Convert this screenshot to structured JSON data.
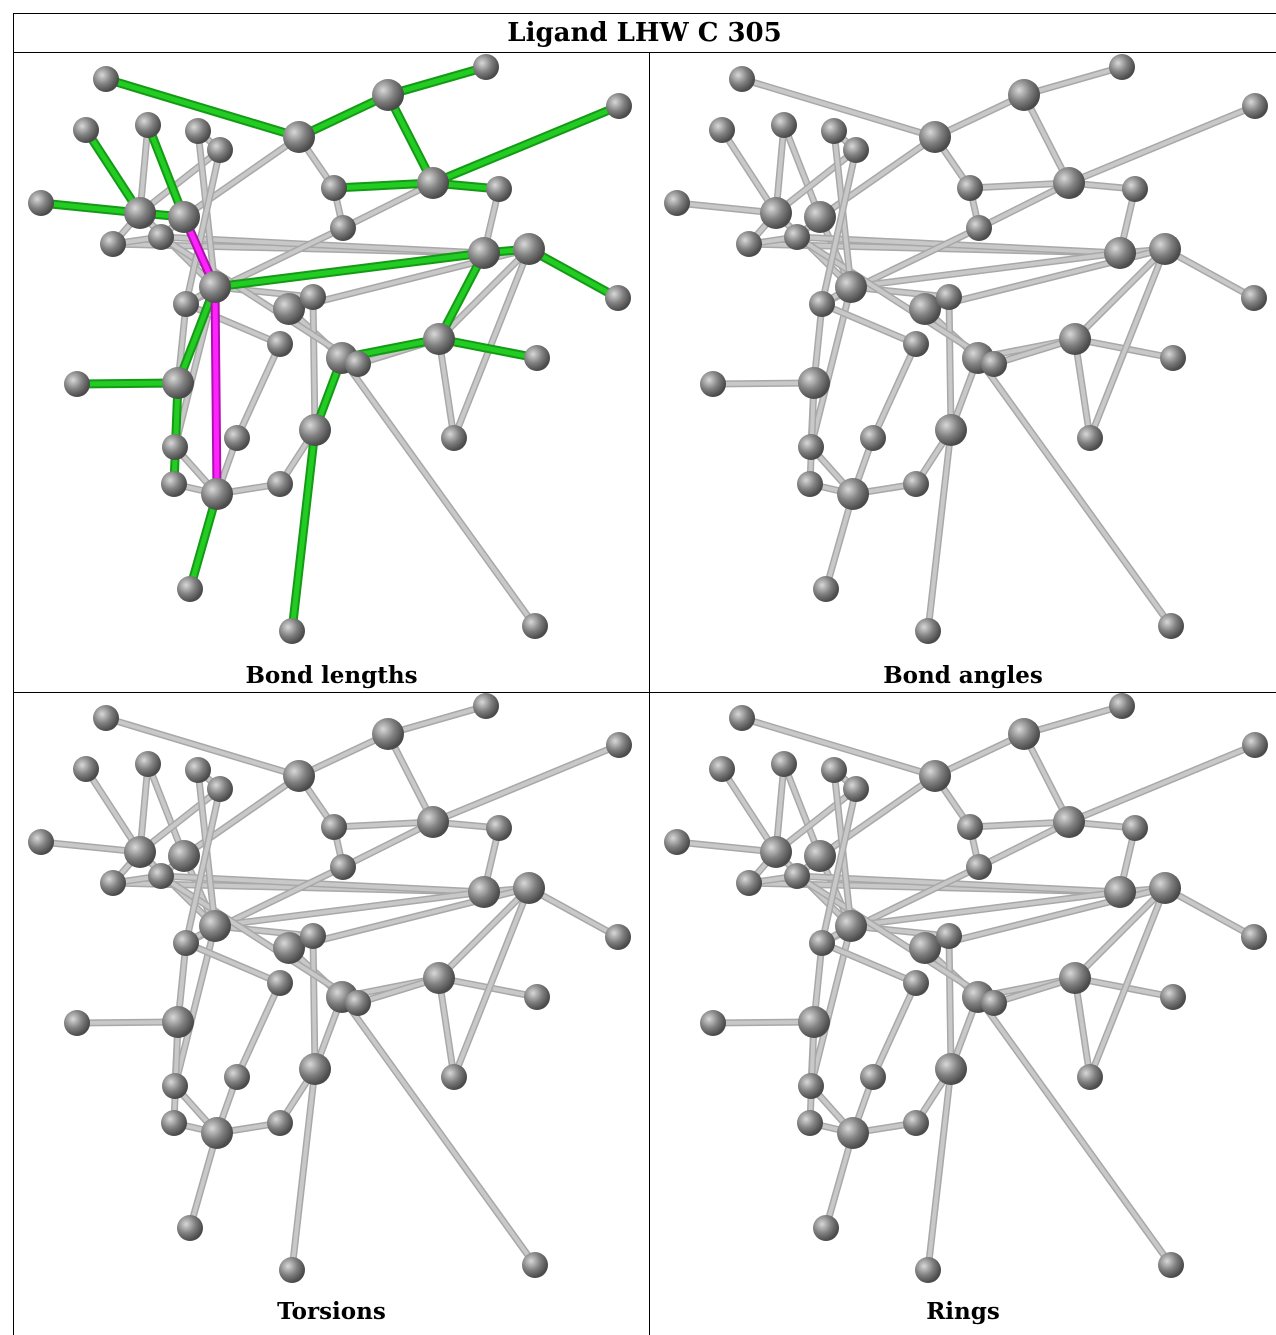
{
  "title": "Ligand LHW C 305",
  "panels": [
    {
      "caption": "Bond lengths",
      "highlight": true
    },
    {
      "caption": "Bond angles",
      "highlight": false
    },
    {
      "caption": "Torsions",
      "highlight": false
    },
    {
      "caption": "Rings",
      "highlight": false
    }
  ],
  "colors": {
    "atom": "#808080",
    "bond": "#c8c8c8",
    "outlier_bond": "#22cc22",
    "severe_outlier_bond": "#ff22ff"
  }
}
